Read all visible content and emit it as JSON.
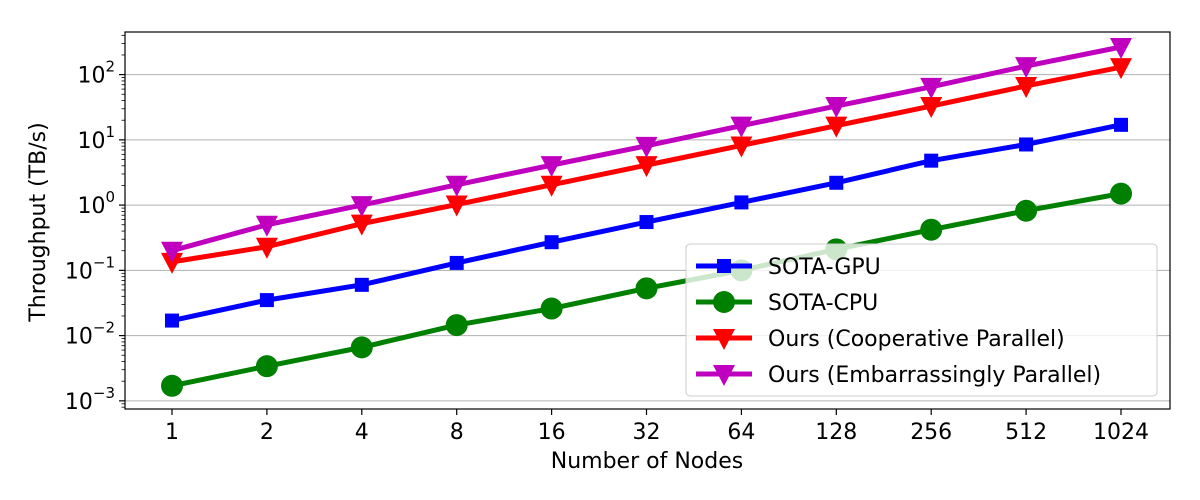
{
  "chart_data": {
    "type": "line",
    "title": "",
    "xlabel": "Number of Nodes",
    "ylabel": "Throughput (TB/s)",
    "yscale": "log",
    "ylim": [
      0.00075,
      450
    ],
    "categories": [
      "1",
      "2",
      "4",
      "8",
      "16",
      "32",
      "64",
      "128",
      "256",
      "512",
      "1024"
    ],
    "yticks": [
      {
        "value": 0.001,
        "base": "10",
        "exp": "−3"
      },
      {
        "value": 0.01,
        "base": "10",
        "exp": "−2"
      },
      {
        "value": 0.1,
        "base": "10",
        "exp": "−1"
      },
      {
        "value": 1,
        "base": "10",
        "exp": "0"
      },
      {
        "value": 10,
        "base": "10",
        "exp": "1"
      },
      {
        "value": 100,
        "base": "10",
        "exp": "2"
      }
    ],
    "grid": "horizontal-major",
    "legend_position": "bottom-right",
    "series": [
      {
        "name": "SOTA-GPU",
        "color": "#0000ff",
        "marker": "square",
        "values": [
          0.017,
          0.035,
          0.06,
          0.13,
          0.27,
          0.55,
          1.1,
          2.2,
          4.8,
          8.5,
          17
        ]
      },
      {
        "name": "SOTA-CPU",
        "color": "#008000",
        "marker": "circle",
        "values": [
          0.0017,
          0.0034,
          0.0066,
          0.0145,
          0.026,
          0.053,
          0.1,
          0.21,
          0.42,
          0.82,
          1.5
        ]
      },
      {
        "name": "Ours (Cooperative Parallel)",
        "color": "#ff0000",
        "marker": "triangle-down",
        "values": [
          0.135,
          0.23,
          0.52,
          1.02,
          2.05,
          4.1,
          8.2,
          16.5,
          33,
          67,
          130
        ]
      },
      {
        "name": "Ours (Embarrassingly Parallel)",
        "color": "#bf00bf",
        "marker": "triangle-down",
        "values": [
          0.2,
          0.5,
          1.0,
          2.05,
          4.1,
          8.1,
          16.5,
          33,
          65,
          135,
          265
        ]
      }
    ]
  }
}
